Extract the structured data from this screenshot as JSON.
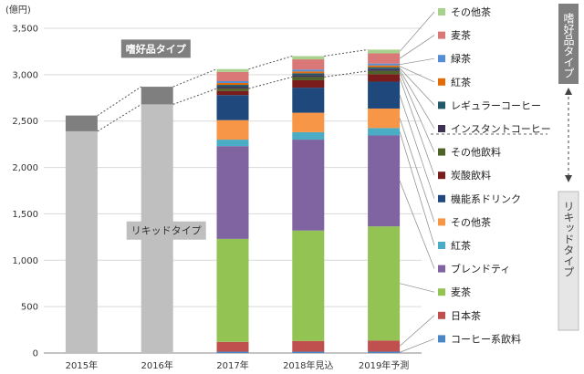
{
  "chart_data": {
    "type": "bar",
    "stacked": true,
    "unit_label": "(億円)",
    "categories": [
      "2015年",
      "2016年",
      "2017年",
      "2018年見込",
      "2019年予測"
    ],
    "ylim": [
      0,
      3500
    ],
    "yticks": [
      0,
      500,
      1000,
      1500,
      2000,
      2500,
      3000,
      3500
    ],
    "ytick_labels": [
      "0",
      "500",
      "1,000",
      "1,500",
      "2,000",
      "2,500",
      "3,000",
      "3,500"
    ],
    "grid": true,
    "aggregate": {
      "liquid_totals": [
        2390,
        2680
      ],
      "preference_totals": [
        170,
        190
      ],
      "liquid_label": "リキッドタイプ",
      "preference_label": "嗜好品タイプ",
      "liquid_color": "#bfbfbf",
      "preference_color": "#7f7f7f"
    },
    "series": [
      {
        "name": "コーヒー系飲料",
        "color": "#4a86c5",
        "values": [
          null,
          null,
          15,
          15,
          15
        ]
      },
      {
        "name": "日本茶",
        "color": "#c0504d",
        "values": [
          null,
          null,
          105,
          115,
          120
        ]
      },
      {
        "name": "麦茶",
        "color": "#92c353",
        "values": [
          null,
          null,
          1110,
          1190,
          1230
        ]
      },
      {
        "name": "ブレンドティ",
        "color": "#8064a2",
        "values": [
          null,
          null,
          1000,
          980,
          980
        ]
      },
      {
        "name": "紅茶",
        "color": "#4bacc6",
        "values": [
          null,
          null,
          70,
          80,
          80
        ]
      },
      {
        "name": "その他茶",
        "color": "#f79646",
        "values": [
          null,
          null,
          210,
          210,
          210
        ]
      },
      {
        "name": "機能系ドリンク",
        "color": "#1f497d",
        "values": [
          null,
          null,
          270,
          270,
          290
        ]
      },
      {
        "name": "炭酸飲料",
        "color": "#7b1c1c",
        "values": [
          null,
          null,
          45,
          80,
          80
        ]
      },
      {
        "name": "その他飲料",
        "color": "#4f6228",
        "values": [
          null,
          null,
          25,
          35,
          35
        ]
      },
      {
        "name": "インスタントコーヒー",
        "color": "#3f3151",
        "values": [
          null,
          null,
          20,
          20,
          20
        ]
      },
      {
        "name": "レギュラーコーヒー",
        "color": "#215868",
        "values": [
          null,
          null,
          20,
          20,
          20
        ]
      },
      {
        "name": "紅茶",
        "color": "#e26b0a",
        "values": [
          null,
          null,
          20,
          20,
          20
        ]
      },
      {
        "name": "緑茶",
        "color": "#558ed5",
        "values": [
          null,
          null,
          20,
          20,
          20
        ]
      },
      {
        "name": "麦茶",
        "color": "#da7878",
        "values": [
          null,
          null,
          100,
          110,
          110
        ]
      },
      {
        "name": "その他茶",
        "color": "#a9d18e",
        "values": [
          null,
          null,
          30,
          35,
          40
        ]
      }
    ],
    "legend_order": [
      "その他茶",
      "麦茶",
      "緑茶",
      "紅茶",
      "レギュラーコーヒー",
      "インスタントコーヒー",
      "その他飲料",
      "炭酸飲料",
      "機能系ドリンク",
      "その他茶",
      "紅茶",
      "ブレンドティ",
      "麦茶",
      "日本茶",
      "コーヒー系飲料"
    ],
    "legend_placement": "right",
    "group_labels": [
      {
        "name": "嗜好品タイプ",
        "first_series": 9,
        "last_series": 14,
        "color": "#7f7f7f"
      },
      {
        "name": "リキッドタイプ",
        "first_series": 0,
        "last_series": 8,
        "color": "#7f7f7f"
      }
    ]
  }
}
